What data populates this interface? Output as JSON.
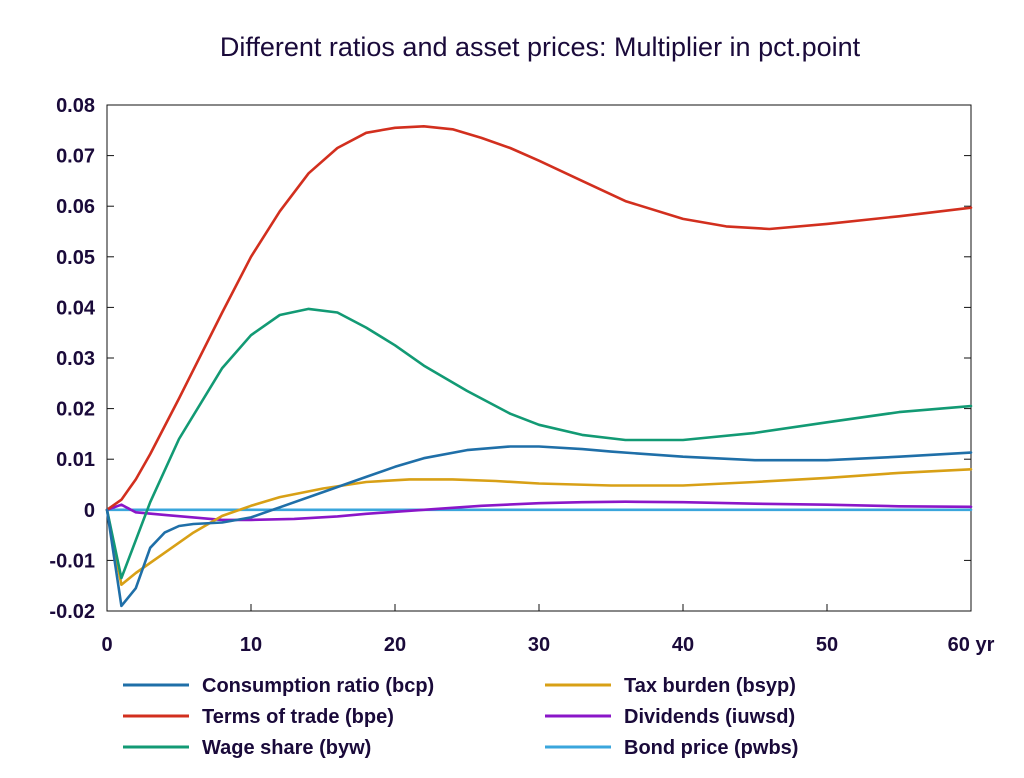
{
  "chart_data": {
    "type": "line",
    "title": "Different ratios and asset prices: Multiplier in pct.point",
    "x_unit": "yr",
    "xlim": [
      0,
      60
    ],
    "ylim": [
      -0.02,
      0.08
    ],
    "x_ticks": [
      "0",
      "10",
      "20",
      "30",
      "40",
      "50",
      "60"
    ],
    "y_ticks": [
      "0.08",
      "0.07",
      "0.06",
      "0.05",
      "0.04",
      "0.03",
      "0.02",
      "0.01",
      "0",
      "-0.01",
      "-0.02"
    ],
    "grid": false,
    "legend_position": "bottom",
    "series": [
      {
        "name": "Consumption ratio (bcp)",
        "color": "#1f6fa8",
        "points": [
          [
            0,
            0
          ],
          [
            1,
            -0.019
          ],
          [
            2,
            -0.0155
          ],
          [
            3,
            -0.0075
          ],
          [
            4,
            -0.0045
          ],
          [
            5,
            -0.0032
          ],
          [
            6,
            -0.0028
          ],
          [
            8,
            -0.0025
          ],
          [
            10,
            -0.0015
          ],
          [
            12,
            0.0005
          ],
          [
            15,
            0.0035
          ],
          [
            18,
            0.0065
          ],
          [
            20,
            0.0085
          ],
          [
            22,
            0.0102
          ],
          [
            25,
            0.0118
          ],
          [
            28,
            0.0125
          ],
          [
            30,
            0.0125
          ],
          [
            33,
            0.012
          ],
          [
            35,
            0.0115
          ],
          [
            40,
            0.0105
          ],
          [
            45,
            0.0098
          ],
          [
            50,
            0.0098
          ],
          [
            55,
            0.0105
          ],
          [
            60,
            0.0113
          ]
        ]
      },
      {
        "name": "Terms of trade (bpe)",
        "color": "#d22f1e",
        "points": [
          [
            0,
            0
          ],
          [
            1,
            0.002
          ],
          [
            2,
            0.006
          ],
          [
            3,
            0.011
          ],
          [
            5,
            0.022
          ],
          [
            8,
            0.039
          ],
          [
            10,
            0.05
          ],
          [
            12,
            0.059
          ],
          [
            14,
            0.0665
          ],
          [
            16,
            0.0715
          ],
          [
            18,
            0.0745
          ],
          [
            20,
            0.0755
          ],
          [
            22,
            0.0758
          ],
          [
            24,
            0.0752
          ],
          [
            26,
            0.0735
          ],
          [
            28,
            0.0715
          ],
          [
            30,
            0.069
          ],
          [
            33,
            0.065
          ],
          [
            36,
            0.061
          ],
          [
            40,
            0.0575
          ],
          [
            43,
            0.056
          ],
          [
            46,
            0.0555
          ],
          [
            50,
            0.0565
          ],
          [
            55,
            0.058
          ],
          [
            60,
            0.0597
          ]
        ]
      },
      {
        "name": "Wage share (byw)",
        "color": "#129a74",
        "points": [
          [
            0,
            0
          ],
          [
            1,
            -0.0135
          ],
          [
            2,
            -0.006
          ],
          [
            3,
            0.0015
          ],
          [
            5,
            0.014
          ],
          [
            8,
            0.028
          ],
          [
            10,
            0.0345
          ],
          [
            12,
            0.0385
          ],
          [
            14,
            0.0397
          ],
          [
            16,
            0.039
          ],
          [
            18,
            0.036
          ],
          [
            20,
            0.0325
          ],
          [
            22,
            0.0285
          ],
          [
            25,
            0.0235
          ],
          [
            28,
            0.019
          ],
          [
            30,
            0.0168
          ],
          [
            33,
            0.0148
          ],
          [
            36,
            0.0138
          ],
          [
            40,
            0.0138
          ],
          [
            45,
            0.0152
          ],
          [
            50,
            0.0173
          ],
          [
            55,
            0.0193
          ],
          [
            60,
            0.0205
          ]
        ]
      },
      {
        "name": "Tax burden (bsyp)",
        "color": "#d8a016",
        "points": [
          [
            0,
            0
          ],
          [
            1,
            -0.0148
          ],
          [
            2,
            -0.0125
          ],
          [
            4,
            -0.0085
          ],
          [
            6,
            -0.0045
          ],
          [
            8,
            -0.0012
          ],
          [
            10,
            0.0008
          ],
          [
            12,
            0.0025
          ],
          [
            15,
            0.0042
          ],
          [
            18,
            0.0055
          ],
          [
            21,
            0.006
          ],
          [
            24,
            0.006
          ],
          [
            27,
            0.0057
          ],
          [
            30,
            0.0052
          ],
          [
            35,
            0.0048
          ],
          [
            40,
            0.0048
          ],
          [
            45,
            0.0055
          ],
          [
            50,
            0.0063
          ],
          [
            55,
            0.0073
          ],
          [
            60,
            0.008
          ]
        ]
      },
      {
        "name": "Dividends (iuwsd)",
        "color": "#8a16c8",
        "points": [
          [
            0,
            0
          ],
          [
            1,
            0.001
          ],
          [
            2,
            -0.0005
          ],
          [
            4,
            -0.001
          ],
          [
            6,
            -0.0015
          ],
          [
            8,
            -0.002
          ],
          [
            10,
            -0.002
          ],
          [
            13,
            -0.0018
          ],
          [
            16,
            -0.0013
          ],
          [
            18,
            -0.0008
          ],
          [
            20,
            -0.0004
          ],
          [
            23,
            0.0002
          ],
          [
            26,
            0.0008
          ],
          [
            30,
            0.0013
          ],
          [
            33,
            0.0015
          ],
          [
            36,
            0.0016
          ],
          [
            40,
            0.0015
          ],
          [
            45,
            0.0012
          ],
          [
            50,
            0.001
          ],
          [
            55,
            0.0007
          ],
          [
            60,
            0.0006
          ]
        ]
      },
      {
        "name": "Bond price (pwbs)",
        "color": "#3aa6dc",
        "points": [
          [
            0,
            0
          ],
          [
            60,
            0
          ]
        ]
      }
    ]
  }
}
